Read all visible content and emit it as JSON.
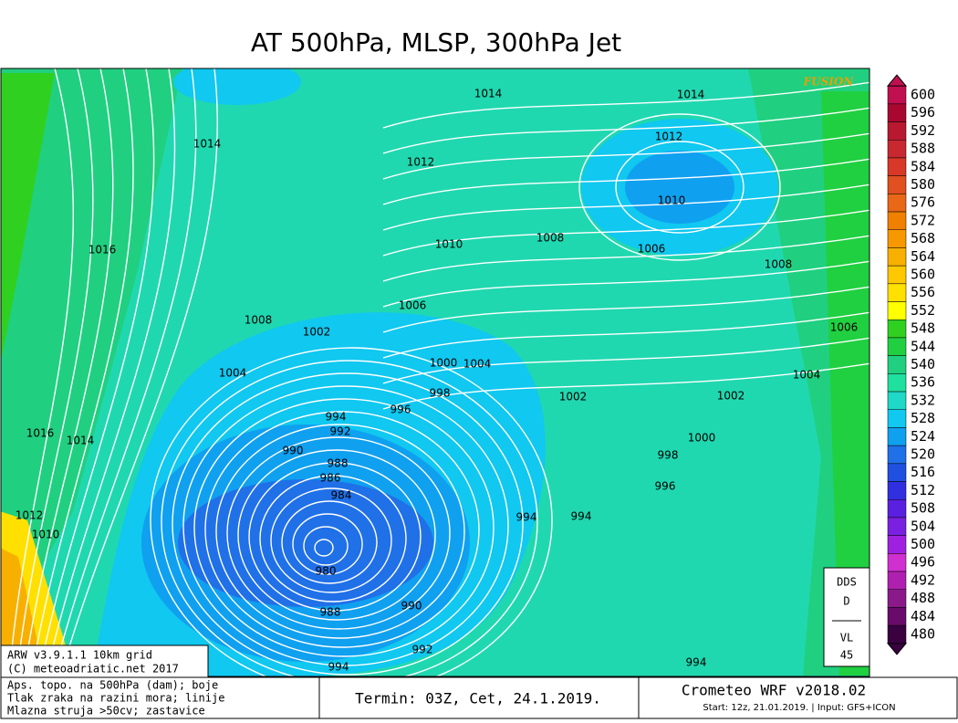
{
  "title": "AT 500hPa, MLSP, 300hPa Jet",
  "logo": "FUSION",
  "colorbar": {
    "levels": [
      600,
      596,
      592,
      588,
      584,
      580,
      576,
      572,
      568,
      564,
      560,
      556,
      552,
      548,
      544,
      540,
      536,
      532,
      528,
      524,
      520,
      516,
      512,
      508,
      504,
      500,
      496,
      492,
      488,
      484,
      480
    ],
    "colors": [
      "#c01050",
      "#a80830",
      "#b81830",
      "#c82830",
      "#d83828",
      "#e05020",
      "#e86818",
      "#f08000",
      "#f89800",
      "#f8b000",
      "#ffc800",
      "#ffe000",
      "#ffff00",
      "#30d020",
      "#20d040",
      "#20d080",
      "#20e0a0",
      "#20d8c8",
      "#10c8f0",
      "#10a0f0",
      "#2070e8",
      "#2050e0",
      "#3030e0",
      "#5a20e0",
      "#7a20e0",
      "#a020e0",
      "#d030d0",
      "#b020b0",
      "#8a1a8a",
      "#6a0a6a",
      "#3a0040"
    ]
  },
  "isobar_labels": [
    "1014",
    "1014",
    "1014",
    "1012",
    "1012",
    "1010",
    "1016",
    "1010",
    "1008",
    "1006",
    "1008",
    "1006",
    "1008",
    "1002",
    "1006",
    "1004",
    "1000",
    "1004",
    "998",
    "996",
    "1002",
    "1002",
    "1004",
    "994",
    "992",
    "1016",
    "1014",
    "990",
    "988",
    "986",
    "984",
    "1000",
    "998",
    "996",
    "994",
    "994",
    "1012",
    "1010",
    "980",
    "990",
    "988",
    "992",
    "994",
    "994"
  ],
  "model_box": {
    "line1": "ARW v3.9.1.1 10km grid",
    "line2": "(C) meteoadriatic.net 2017"
  },
  "legend_lines": [
    "Aps. topo. na 500hPa (dam); boje",
    "Tlak zraka na razini mora; linije",
    "Mlazna struja >50cv; zastavice"
  ],
  "termin": "Termin: 03Z, Cet, 24.1.2019.",
  "brand": "Crometeo WRF v2018.02",
  "run_info": "Start: 12z, 21.01.2019. | Input: GFS+ICON",
  "dds": {
    "line1": "DDS",
    "line2": "D",
    "line3": "VL",
    "line4": "45"
  }
}
